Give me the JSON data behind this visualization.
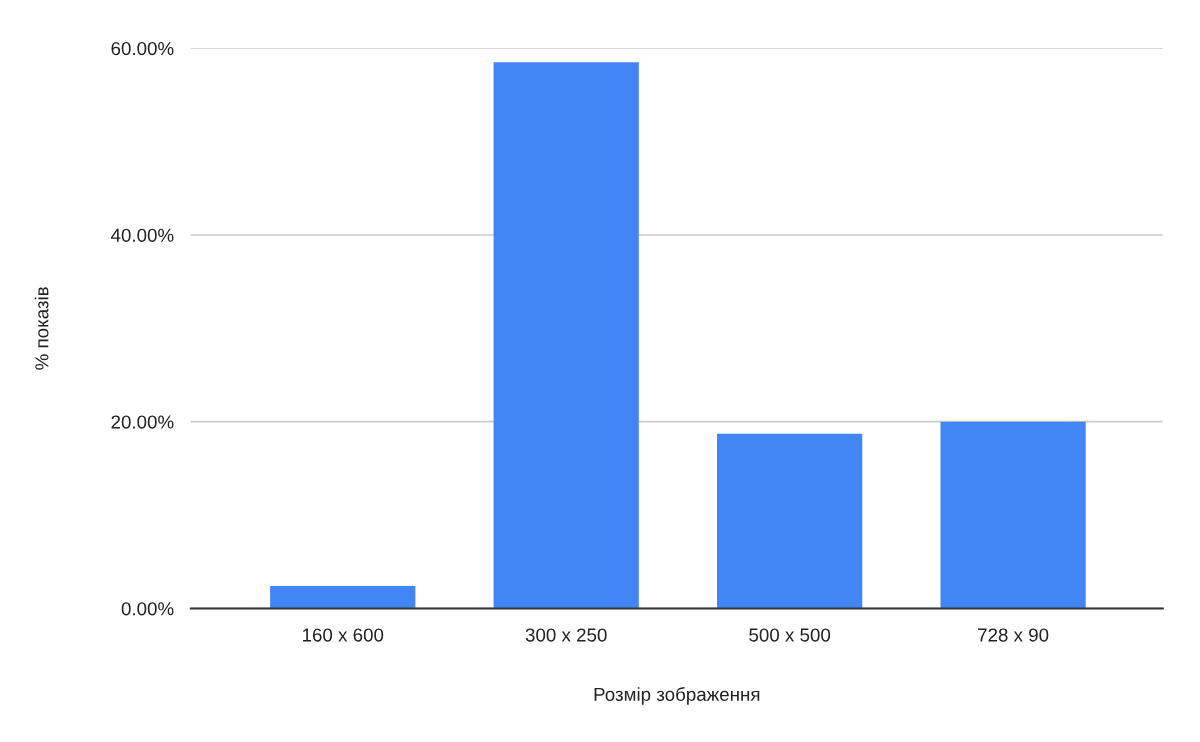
{
  "chart_data": {
    "type": "bar",
    "xlabel": "Розмір зображення",
    "ylabel": "% показів",
    "categories": [
      "160 x 600",
      "300 x 250",
      "500 x 500",
      "728 x 90"
    ],
    "values": [
      2.4,
      58.5,
      18.7,
      20.0
    ],
    "color": "#4285f4",
    "ylim": [
      0,
      60
    ],
    "yticks": [
      {
        "value": 0,
        "label": "0.00%"
      },
      {
        "value": 20,
        "label": "20.00%"
      },
      {
        "value": 40,
        "label": "40.00%"
      },
      {
        "value": 60,
        "label": "60.00%"
      }
    ],
    "grid": "y",
    "legend": false
  }
}
